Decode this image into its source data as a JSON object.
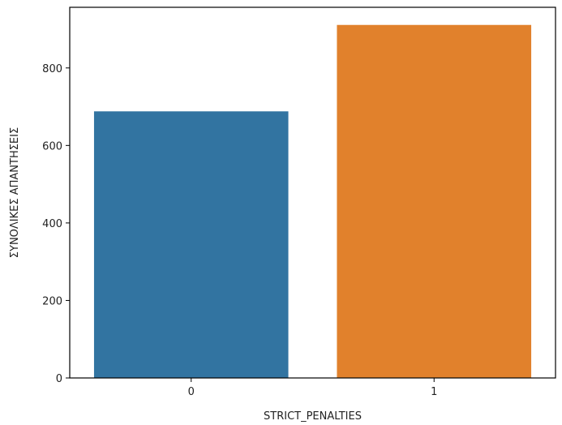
{
  "chart_data": {
    "type": "bar",
    "title": "",
    "xlabel": "STRICT_PENALTIES",
    "ylabel": "ΣΥΝΟΛΙΚΕΣ ΑΠΑΝΤΗΣΕΙΣ",
    "categories": [
      "0",
      "1"
    ],
    "values": [
      688,
      911
    ],
    "colors": [
      "#3274a1",
      "#e1812c"
    ],
    "ylim": [
      0,
      956.5
    ],
    "yticks": [
      0,
      200,
      400,
      600,
      800
    ],
    "grid": false,
    "legend": "none"
  }
}
